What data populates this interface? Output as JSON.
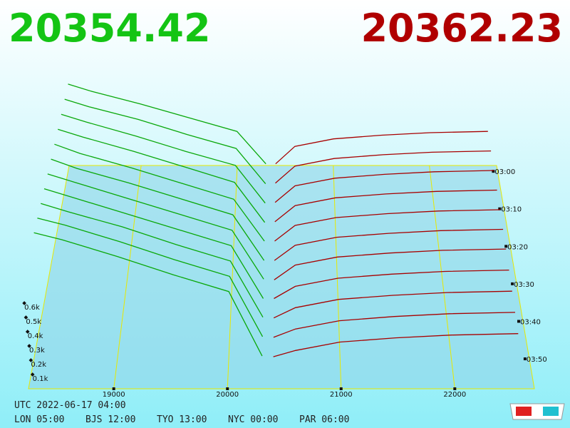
{
  "header": {
    "bid_price": "20354.42",
    "ask_price": "20362.23"
  },
  "chart_data": {
    "type": "depth3d",
    "bid_color": "#0aa80a",
    "ask_color": "#a80000",
    "xlim": [
      18250,
      22700
    ],
    "xticks": [
      19000,
      20000,
      21000,
      22000
    ],
    "zticks": [
      {
        "value": 100,
        "label": "0.1k"
      },
      {
        "value": 200,
        "label": "0.2k"
      },
      {
        "value": 300,
        "label": "0.3k"
      },
      {
        "value": 400,
        "label": "0.4k"
      },
      {
        "value": 500,
        "label": "0.5k"
      },
      {
        "value": 600,
        "label": "0.6k"
      }
    ],
    "bid_prices": [
      20300,
      20000,
      19500,
      19000,
      18500,
      18250
    ],
    "ask_prices": [
      20400,
      20600,
      21000,
      21500,
      22000,
      22600
    ],
    "snapshots": [
      {
        "time": "03:00",
        "bids": [
          60,
          320,
          430,
          540,
          640,
          700
        ],
        "asks": [
          60,
          200,
          260,
          290,
          310,
          320
        ]
      },
      {
        "time": null,
        "bids": [
          50,
          330,
          440,
          560,
          660,
          720
        ],
        "asks": [
          55,
          190,
          250,
          280,
          300,
          310
        ]
      },
      {
        "time": "03:10",
        "bids": [
          45,
          340,
          450,
          570,
          680,
          740
        ],
        "asks": [
          50,
          180,
          240,
          270,
          290,
          300
        ]
      },
      {
        "time": null,
        "bids": [
          40,
          350,
          470,
          590,
          700,
          760
        ],
        "asks": [
          45,
          170,
          230,
          260,
          280,
          290
        ]
      },
      {
        "time": "03:20",
        "bids": [
          40,
          360,
          480,
          600,
          710,
          780
        ],
        "asks": [
          40,
          160,
          220,
          250,
          270,
          280
        ]
      },
      {
        "time": null,
        "bids": [
          35,
          380,
          500,
          620,
          730,
          800
        ],
        "asks": [
          35,
          150,
          210,
          240,
          260,
          270
        ]
      },
      {
        "time": "03:30",
        "bids": [
          35,
          400,
          520,
          640,
          760,
          820
        ],
        "asks": [
          30,
          140,
          200,
          230,
          250,
          260
        ]
      },
      {
        "time": null,
        "bids": [
          30,
          420,
          540,
          660,
          780,
          840
        ],
        "asks": [
          30,
          120,
          180,
          210,
          230,
          240
        ]
      },
      {
        "time": "03:40",
        "bids": [
          30,
          440,
          560,
          690,
          800,
          860
        ],
        "asks": [
          25,
          100,
          160,
          190,
          210,
          220
        ]
      },
      {
        "time": null,
        "bids": [
          25,
          460,
          580,
          710,
          830,
          880
        ],
        "asks": [
          20,
          80,
          140,
          170,
          190,
          200
        ]
      },
      {
        "time": "03:50",
        "bids": [
          20,
          480,
          600,
          730,
          850,
          900
        ],
        "asks": [
          15,
          60,
          120,
          150,
          170,
          180
        ]
      }
    ]
  },
  "footer": {
    "utc": "UTC 2022-06-17 04:00",
    "zones": [
      "LON 05:00",
      "BJS 12:00",
      "TYO 13:00",
      "NYC 00:00",
      "PAR 06:00"
    ]
  }
}
